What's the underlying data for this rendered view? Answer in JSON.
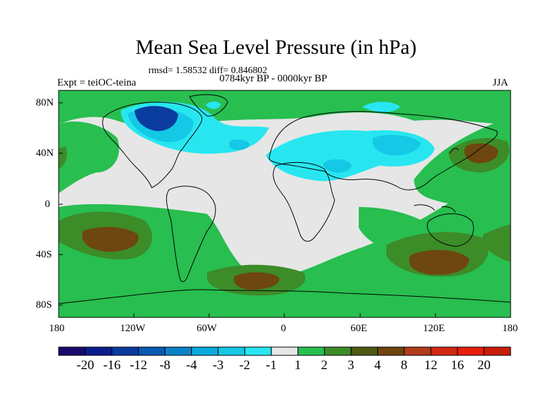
{
  "title": "Mean Sea Level Pressure (in hPa)",
  "stats": "rmsd= 1.58532 diff= 0.846802",
  "experiment": "Expt = teiOC-teina",
  "period": "0784kyr BP - 0000kyr BP",
  "season": "JJA",
  "lon_ticks": [
    "180",
    "120W",
    "60W",
    "0",
    "60E",
    "120E",
    "180"
  ],
  "lat_ticks": [
    "80N",
    "40N",
    "0",
    "40S",
    "80S"
  ],
  "colorbar": {
    "labels": [
      "-20",
      "-16",
      "-12",
      "-8",
      "-4",
      "-3",
      "-2",
      "-1",
      "1",
      "2",
      "3",
      "4",
      "8",
      "12",
      "16",
      "20"
    ],
    "colors": [
      "#1a0a6e",
      "#0a1e8c",
      "#0a3ca0",
      "#0a5ab4",
      "#0a82c8",
      "#0aaadc",
      "#14c8e6",
      "#28e6f0",
      "#e6e6e6",
      "#28be50",
      "#3c8c28",
      "#505a14",
      "#6e4610",
      "#b43c1e",
      "#d22814",
      "#e61e0a",
      "#c81e0a"
    ]
  },
  "legend_colors": {
    "ocean_neutral": "#e6e6e6",
    "positive_low": "#28be50",
    "positive_mid": "#3c8c28",
    "positive_high": "#6e4610",
    "negative_low": "#28e6f0",
    "negative_mid": "#14c8e6",
    "negative_high": "#0a3ca0"
  }
}
